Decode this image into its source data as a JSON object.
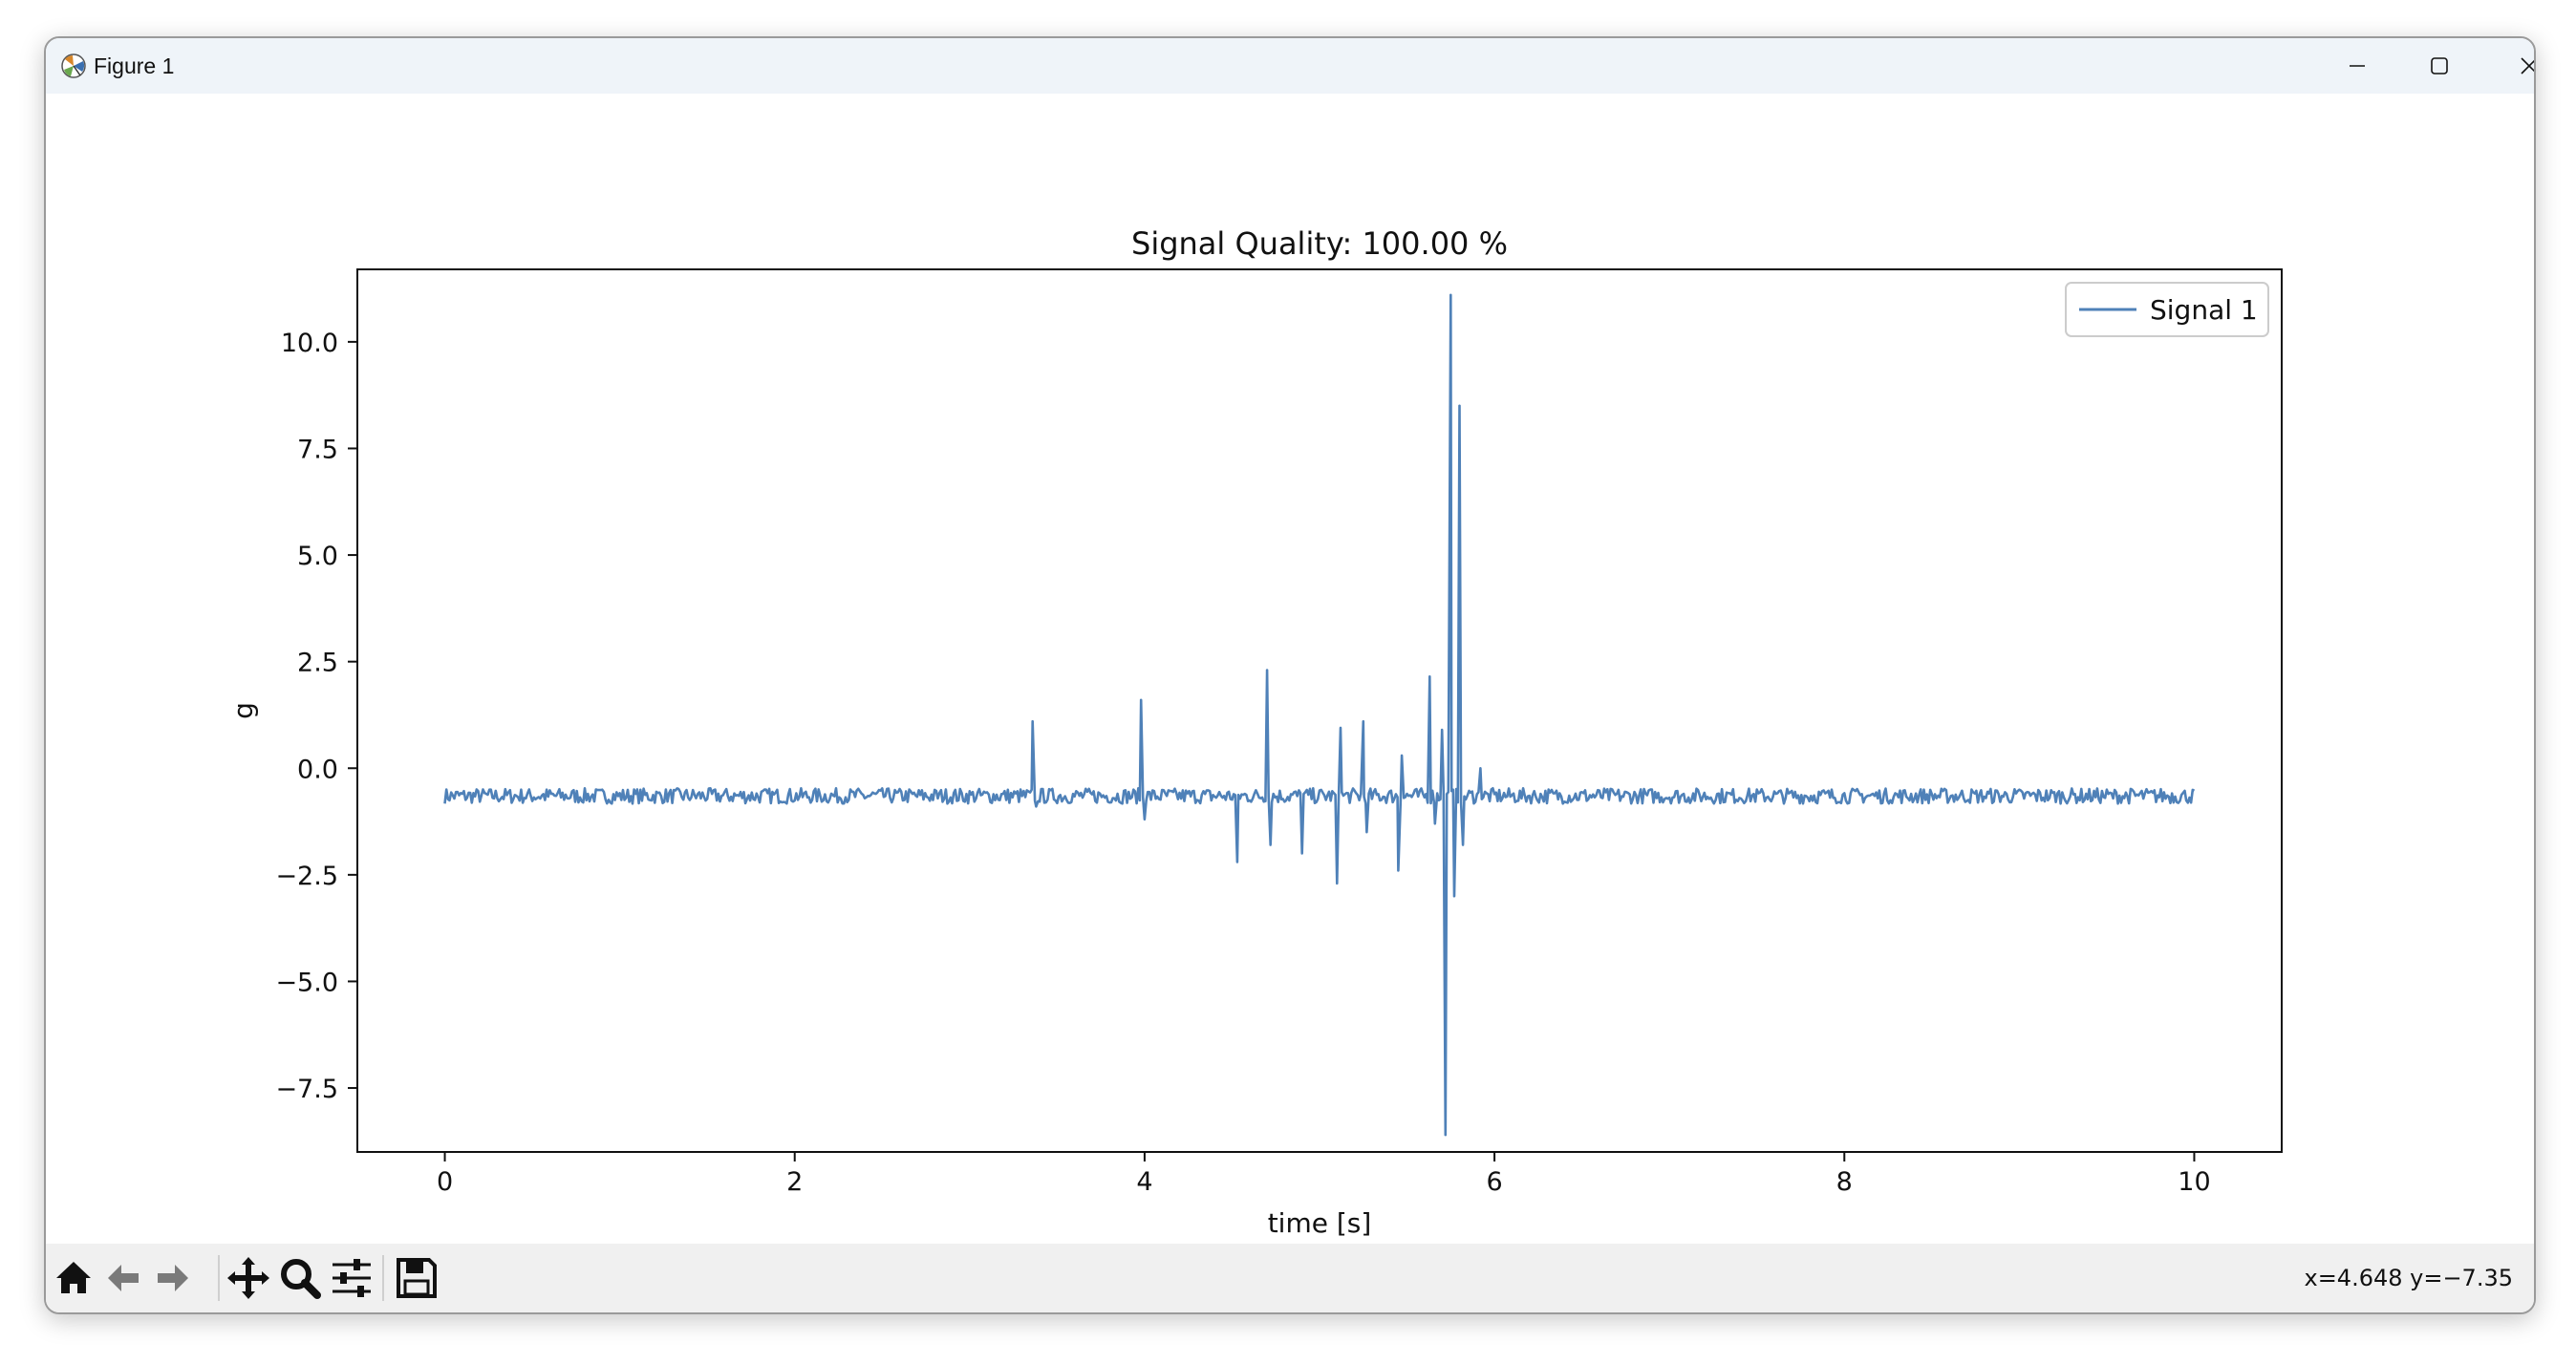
{
  "window": {
    "title": "Figure 1"
  },
  "toolbar": {
    "buttons": [
      "home-icon",
      "back-icon",
      "forward-icon",
      "pan-icon",
      "zoom-icon",
      "configure-icon",
      "save-icon"
    ],
    "coords": "x=4.648 y=−7.35"
  },
  "chart_data": {
    "type": "line",
    "title": "Signal Quality: 100.00 %",
    "xlabel": "time [s]",
    "ylabel": "g",
    "xlim": [
      -0.5,
      10.5
    ],
    "ylim": [
      -9.0,
      11.7
    ],
    "xticks": [
      0,
      2,
      4,
      6,
      8,
      10
    ],
    "xtick_labels": [
      "0",
      "2",
      "4",
      "6",
      "8",
      "10"
    ],
    "yticks": [
      10.0,
      7.5,
      5.0,
      2.5,
      0.0,
      -2.5,
      -5.0,
      -7.5
    ],
    "ytick_labels": [
      "10.0",
      "7.5",
      "5.0",
      "2.5",
      "0.0",
      "−2.5",
      "−5.0",
      "−7.5"
    ],
    "legend": {
      "position": "top-right",
      "entries": [
        "Signal 1"
      ]
    },
    "series": [
      {
        "name": "Signal 1",
        "color": "#4f81b8",
        "baseline": -0.65,
        "noise_amplitude": 0.18,
        "x_range": [
          0,
          10
        ],
        "spikes": [
          {
            "x": 3.36,
            "y": 1.1
          },
          {
            "x": 3.38,
            "y": -0.9
          },
          {
            "x": 3.98,
            "y": 1.6
          },
          {
            "x": 4.0,
            "y": -1.2
          },
          {
            "x": 4.53,
            "y": -2.2
          },
          {
            "x": 4.7,
            "y": 2.3
          },
          {
            "x": 4.72,
            "y": -1.8
          },
          {
            "x": 4.9,
            "y": -2.0
          },
          {
            "x": 5.1,
            "y": -2.7
          },
          {
            "x": 5.12,
            "y": 0.95
          },
          {
            "x": 5.25,
            "y": 1.1
          },
          {
            "x": 5.27,
            "y": -1.5
          },
          {
            "x": 5.45,
            "y": -2.4
          },
          {
            "x": 5.47,
            "y": 0.3
          },
          {
            "x": 5.63,
            "y": 2.15
          },
          {
            "x": 5.66,
            "y": -1.3
          },
          {
            "x": 5.7,
            "y": 0.9
          },
          {
            "x": 5.72,
            "y": -8.6
          },
          {
            "x": 5.75,
            "y": 11.1
          },
          {
            "x": 5.77,
            "y": -3.0
          },
          {
            "x": 5.8,
            "y": 8.5
          },
          {
            "x": 5.82,
            "y": -1.8
          },
          {
            "x": 5.92,
            "y": 0.0
          }
        ]
      }
    ]
  }
}
